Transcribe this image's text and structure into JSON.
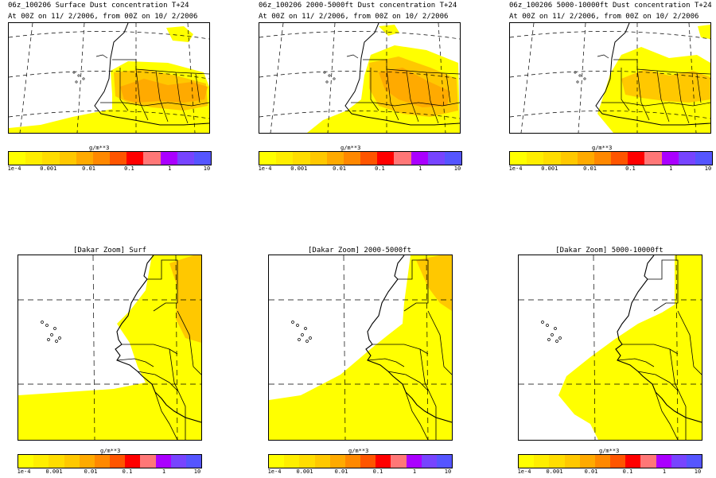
{
  "top_panels": [
    {
      "title": "06z_100206 Surface Dust concentration T+24",
      "subtitle": "At 00Z on 11/ 2/2006, from 00Z on 10/ 2/2006",
      "unit": "g/m**3",
      "variant": "surface"
    },
    {
      "title": "06z_100206 2000-5000ft Dust concentration T+24",
      "subtitle": "At 00Z on 11/ 2/2006, from 00Z on 10/ 2/2006",
      "unit": "g/m**3",
      "variant": "mid"
    },
    {
      "title": "06z_100206 5000-10000ft Dust concentration T+24",
      "subtitle": "At 00Z on 11/ 2/2006, from 00Z on 10/ 2/2006",
      "unit": "g/m**3",
      "variant": "high"
    }
  ],
  "zoom_panels": [
    {
      "title": "[Dakar Zoom] Surf",
      "unit": "g/m**3",
      "variant": "surface"
    },
    {
      "title": "[Dakar Zoom] 2000-5000ft",
      "unit": "g/m**3",
      "variant": "mid"
    },
    {
      "title": "[Dakar Zoom] 5000-10000ft",
      "unit": "g/m**3",
      "variant": "high"
    }
  ],
  "colorbar": {
    "colors": [
      "#ffff00",
      "#ffee00",
      "#ffdd00",
      "#ffc800",
      "#ffaa00",
      "#ff8800",
      "#ff5500",
      "#ff0000",
      "#ff7777",
      "#aa00ff",
      "#7744ff",
      "#5555ff"
    ],
    "tick_labels": [
      "1e-4",
      "0.001",
      "0.01",
      "0.1",
      "1",
      "10"
    ]
  },
  "colors": {
    "dust_light": "#ffff00",
    "dust_mid": "#ffc800",
    "dust_dark": "#ffaa00",
    "coast": "#000000"
  }
}
